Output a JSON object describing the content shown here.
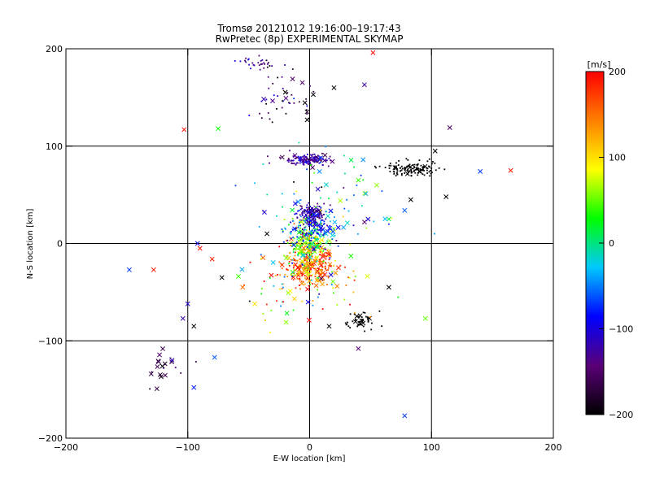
{
  "chart_data": {
    "type": "scatter",
    "title": "Tromsø 20121012 19:16:00–19:17:43",
    "subtitle": "RwPretec (8p) EXPERIMENTAL SKYMAP",
    "xlabel": "E-W location [km]",
    "ylabel": "N-S location [km]",
    "xlim": [
      -200,
      200
    ],
    "ylim": [
      -200,
      200
    ],
    "xticks": [
      "−200",
      "−100",
      "0",
      "100",
      "200"
    ],
    "yticks": [
      "−200",
      "−100",
      "0",
      "100",
      "200"
    ],
    "grid": true,
    "grid_lines": [
      -100,
      0,
      100
    ],
    "marker_types": [
      "dot",
      "x"
    ],
    "colorbar": {
      "label": "[m/s]",
      "min": -200,
      "max": 200,
      "ticks": [
        "200",
        "100",
        "0",
        "−100",
        "−200"
      ],
      "colormap": [
        "#000000",
        "#5a0078",
        "#0000ff",
        "#00c8ff",
        "#00ff00",
        "#ffff00",
        "#ff8000",
        "#ff0000"
      ]
    },
    "clusters": [
      {
        "cx": 0,
        "cy": -25,
        "sx": 11,
        "sy": 9,
        "n": 260,
        "vel": 150,
        "vsd": 40,
        "xfrac": 0.25
      },
      {
        "cx": -2,
        "cy": 0,
        "sx": 9,
        "sy": 10,
        "n": 220,
        "vel": 60,
        "vsd": 50,
        "xfrac": 0.15
      },
      {
        "cx": 2,
        "cy": 28,
        "sx": 6,
        "sy": 6,
        "n": 170,
        "vel": -120,
        "vsd": 25,
        "xfrac": 0.05
      },
      {
        "cx": 2,
        "cy": 14,
        "sx": 10,
        "sy": 8,
        "n": 130,
        "vel": -70,
        "vsd": 40,
        "xfrac": 0.1
      },
      {
        "cx": -3,
        "cy": 86,
        "sx": 10,
        "sy": 3,
        "n": 150,
        "vel": -130,
        "vsd": 20,
        "xfrac": 0.05
      },
      {
        "cx": 85,
        "cy": 77,
        "sx": 12,
        "sy": 4,
        "n": 130,
        "vel": -200,
        "vsd": 5,
        "xfrac": 0.05
      },
      {
        "cx": 40,
        "cy": -80,
        "sx": 7,
        "sy": 6,
        "n": 45,
        "vel": -200,
        "vsd": 5,
        "xfrac": 0.2
      },
      {
        "cx": -40,
        "cy": 185,
        "sx": 8,
        "sy": 3,
        "n": 30,
        "vel": -140,
        "vsd": 25,
        "xfrac": 0
      },
      {
        "cx": -20,
        "cy": 145,
        "sx": 14,
        "sy": 14,
        "n": 45,
        "vel": -150,
        "vsd": 40,
        "xfrac": 0.25
      },
      {
        "cx": -120,
        "cy": -128,
        "sx": 7,
        "sy": 8,
        "n": 22,
        "vel": -160,
        "vsd": 15,
        "xfrac": 0.7
      },
      {
        "cx": 10,
        "cy": 40,
        "sx": 28,
        "sy": 30,
        "n": 90,
        "vel": -20,
        "vsd": 80,
        "xfrac": 0.2
      },
      {
        "cx": -10,
        "cy": -45,
        "sx": 25,
        "sy": 18,
        "n": 80,
        "vel": 80,
        "vsd": 120,
        "xfrac": 0.3
      }
    ],
    "points": [
      {
        "x": 52,
        "y": 196,
        "v": 200,
        "m": "x"
      },
      {
        "x": -103,
        "y": 117,
        "v": 190,
        "m": "x"
      },
      {
        "x": -92,
        "y": 0,
        "v": -100,
        "m": "x"
      },
      {
        "x": -75,
        "y": 118,
        "v": 30,
        "m": "x"
      },
      {
        "x": -148,
        "y": -27,
        "v": -70,
        "m": "x"
      },
      {
        "x": -128,
        "y": -27,
        "v": 190,
        "m": "x"
      },
      {
        "x": -90,
        "y": -5,
        "v": 190,
        "m": "x"
      },
      {
        "x": -80,
        "y": -16,
        "v": 190,
        "m": "x"
      },
      {
        "x": -100,
        "y": -62,
        "v": -110,
        "m": "x"
      },
      {
        "x": -104,
        "y": -77,
        "v": -120,
        "m": "x"
      },
      {
        "x": -95,
        "y": -148,
        "v": -80,
        "m": "x"
      },
      {
        "x": -95,
        "y": -85,
        "v": -200,
        "m": "x"
      },
      {
        "x": -72,
        "y": -35,
        "v": -200,
        "m": "x"
      },
      {
        "x": -55,
        "y": -45,
        "v": 150,
        "m": "x"
      },
      {
        "x": -45,
        "y": -62,
        "v": 100,
        "m": "x"
      },
      {
        "x": -78,
        "y": -117,
        "v": -60,
        "m": "x"
      },
      {
        "x": 115,
        "y": 119,
        "v": -150,
        "m": "x"
      },
      {
        "x": 103,
        "y": 95,
        "v": -200,
        "m": "x"
      },
      {
        "x": 140,
        "y": 74,
        "v": -70,
        "m": "x"
      },
      {
        "x": 165,
        "y": 75,
        "v": 190,
        "m": "x"
      },
      {
        "x": 112,
        "y": 48,
        "v": -200,
        "m": "x"
      },
      {
        "x": 83,
        "y": 45,
        "v": -200,
        "m": "x"
      },
      {
        "x": 78,
        "y": 34,
        "v": -60,
        "m": "x"
      },
      {
        "x": 55,
        "y": 60,
        "v": 60,
        "m": "x"
      },
      {
        "x": 40,
        "y": 65,
        "v": 40,
        "m": "x"
      },
      {
        "x": 95,
        "y": -77,
        "v": 50,
        "m": "x"
      },
      {
        "x": 78,
        "y": -177,
        "v": -70,
        "m": "x"
      },
      {
        "x": 45,
        "y": 163,
        "v": -120,
        "m": "x"
      },
      {
        "x": 20,
        "y": 160,
        "v": -200,
        "m": "x"
      },
      {
        "x": 3,
        "y": 153,
        "v": -200,
        "m": "x"
      },
      {
        "x": -2,
        "y": 127,
        "v": -200,
        "m": "x"
      },
      {
        "x": 40,
        "y": -108,
        "v": -140,
        "m": "x"
      },
      {
        "x": 16,
        "y": -85,
        "v": -200,
        "m": "x"
      },
      {
        "x": 65,
        "y": -45,
        "v": -200,
        "m": "x"
      },
      {
        "x": 48,
        "y": 25,
        "v": -100,
        "m": "x"
      },
      {
        "x": 45,
        "y": 22,
        "v": -150,
        "m": "x"
      },
      {
        "x": -35,
        "y": 10,
        "v": -200,
        "m": "x"
      }
    ]
  }
}
